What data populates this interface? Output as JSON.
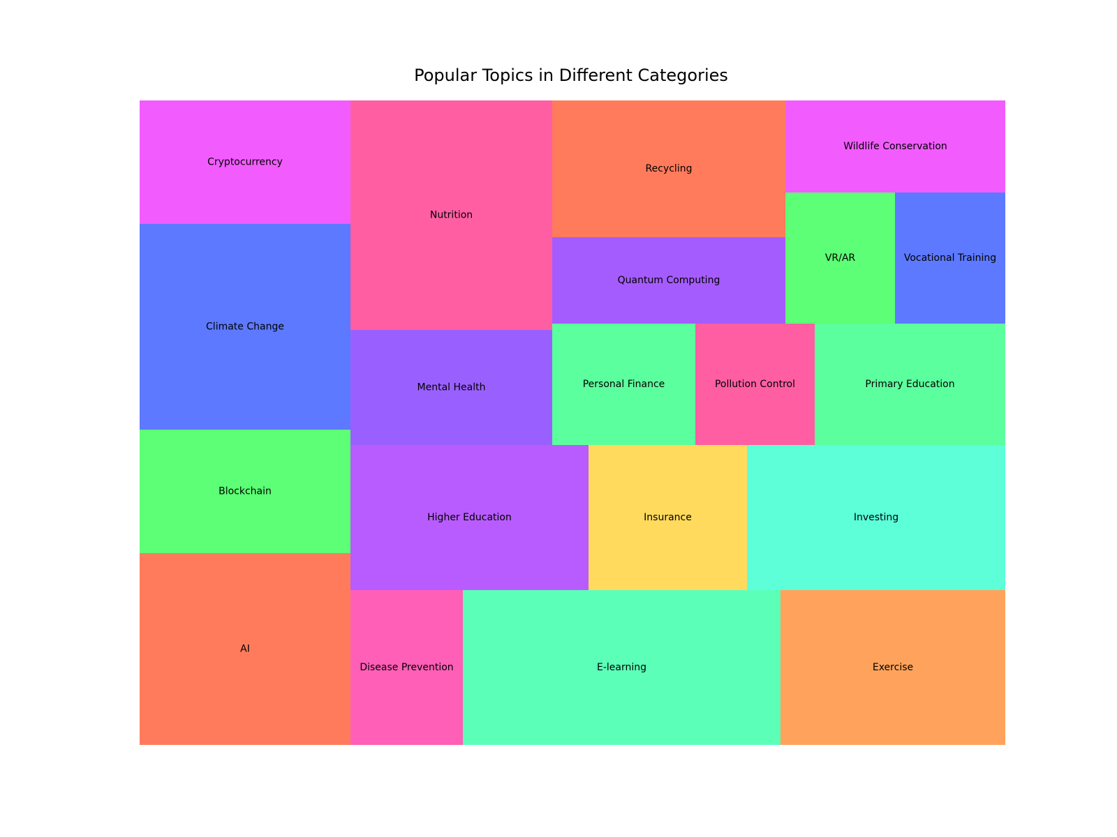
{
  "chart_data": {
    "type": "treemap",
    "title": "Popular Topics in Different Categories",
    "cells": [
      {
        "label": "Cryptocurrency",
        "color": "#f25cff"
      },
      {
        "label": "Climate Change",
        "color": "#5d79ff"
      },
      {
        "label": "Blockchain",
        "color": "#5cff75"
      },
      {
        "label": "AI",
        "color": "#ff7b5c"
      },
      {
        "label": "Nutrition",
        "color": "#ff5fa2"
      },
      {
        "label": "Mental Health",
        "color": "#9a60ff"
      },
      {
        "label": "Recycling",
        "color": "#ff7b5c"
      },
      {
        "label": "Quantum Computing",
        "color": "#a55cff"
      },
      {
        "label": "Wildlife Conservation",
        "color": "#f25cff"
      },
      {
        "label": "VR/AR",
        "color": "#5cff75"
      },
      {
        "label": "Vocational Training",
        "color": "#5d79ff"
      },
      {
        "label": "Personal Finance",
        "color": "#5cff9d"
      },
      {
        "label": "Pollution Control",
        "color": "#ff5fa2"
      },
      {
        "label": "Primary Education",
        "color": "#5cff9d"
      },
      {
        "label": "Higher Education",
        "color": "#b95cff"
      },
      {
        "label": "Insurance",
        "color": "#ffda5c"
      },
      {
        "label": "Investing",
        "color": "#5cffd8"
      },
      {
        "label": "Disease Prevention",
        "color": "#ff5fb6"
      },
      {
        "label": "E-learning",
        "color": "#5cffb8"
      },
      {
        "label": "Exercise",
        "color": "#ffa35c"
      }
    ]
  }
}
